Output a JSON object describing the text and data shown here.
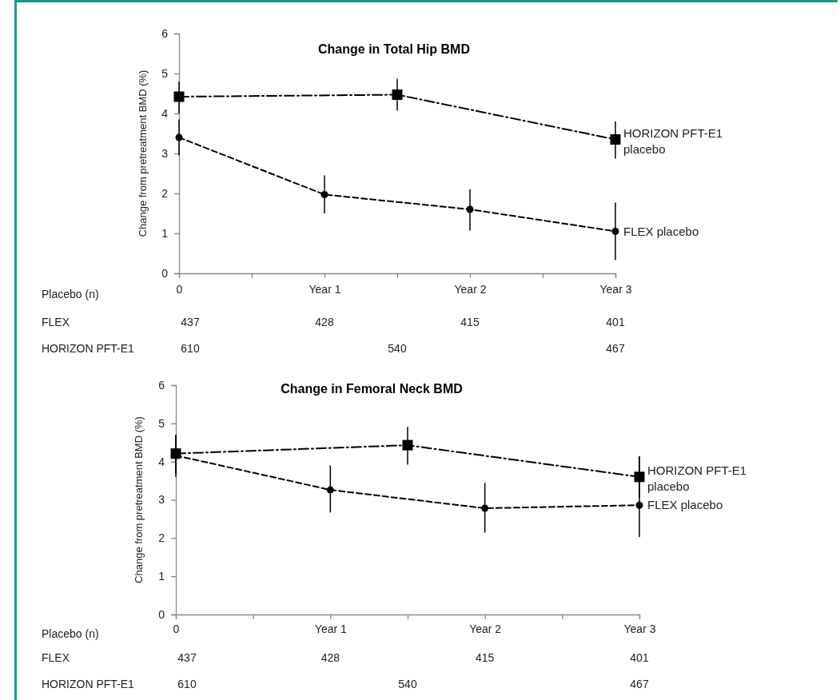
{
  "chart_data": [
    {
      "type": "line",
      "title": "Change in Total Hip BMD",
      "ylabel": "Change from pretreatment BMD (%)",
      "categories": [
        "0",
        null,
        "Year 1",
        null,
        "Year 2",
        null,
        "Year 3"
      ],
      "ylim": [
        0,
        6
      ],
      "yticks": [
        0,
        1,
        2,
        3,
        4,
        5,
        6
      ],
      "grid": false,
      "series": [
        {
          "name": "HORIZON PFT-E1 placebo",
          "color": "#000000",
          "marker": "square",
          "line_style": "dashed",
          "values": [
            4.42,
            null,
            null,
            4.47,
            null,
            null,
            3.35
          ],
          "errors": [
            [
              4.0,
              4.8
            ],
            null,
            null,
            [
              4.07,
              4.87
            ],
            null,
            null,
            [
              2.87,
              3.8
            ]
          ]
        },
        {
          "name": "FLEX placebo",
          "color": "#000000",
          "marker": "circle",
          "line_style": "dashed",
          "values": [
            3.4,
            null,
            1.97,
            null,
            1.6,
            null,
            1.05
          ],
          "errors": [
            [
              2.95,
              3.85
            ],
            null,
            [
              1.5,
              2.45
            ],
            null,
            [
              1.07,
              2.1
            ],
            null,
            [
              0.33,
              1.77
            ]
          ]
        }
      ],
      "annotations": [
        "Placebo (n)",
        "FLEX",
        "437",
        "428",
        "415",
        "401",
        "HORIZON PFT-E1",
        "610",
        "540",
        "467"
      ]
    },
    {
      "type": "line",
      "title": "Change in Femoral Neck BMD",
      "ylabel": "Change from pretreatment BMD (%)",
      "categories": [
        "0",
        null,
        "Year 1",
        null,
        "Year 2",
        null,
        "Year 3"
      ],
      "ylim": [
        0,
        6
      ],
      "yticks": [
        0,
        1,
        2,
        3,
        4,
        5,
        6
      ],
      "grid": false,
      "series": [
        {
          "name": "HORIZON PFT-E1 placebo",
          "color": "#000000",
          "marker": "square",
          "line_style": "dashed",
          "values": [
            4.21,
            null,
            null,
            4.43,
            null,
            null,
            3.6
          ],
          "errors": [
            [
              3.7,
              4.7
            ],
            null,
            null,
            [
              3.92,
              4.91
            ],
            null,
            null,
            [
              3.05,
              4.14
            ]
          ]
        },
        {
          "name": "FLEX placebo",
          "color": "#000000",
          "marker": "circle",
          "line_style": "dashed",
          "values": [
            4.16,
            null,
            3.26,
            null,
            2.78,
            null,
            2.86
          ],
          "errors": [
            [
              3.6,
              4.7
            ],
            null,
            [
              2.67,
              3.9
            ],
            null,
            [
              2.14,
              3.44
            ],
            null,
            [
              2.03,
              4.14
            ]
          ]
        }
      ],
      "annotations": [
        "Placebo (n)",
        "FLEX",
        "437",
        "428",
        "415",
        "401",
        "HORIZON PFT-E1",
        "610",
        "540",
        "467"
      ]
    }
  ]
}
